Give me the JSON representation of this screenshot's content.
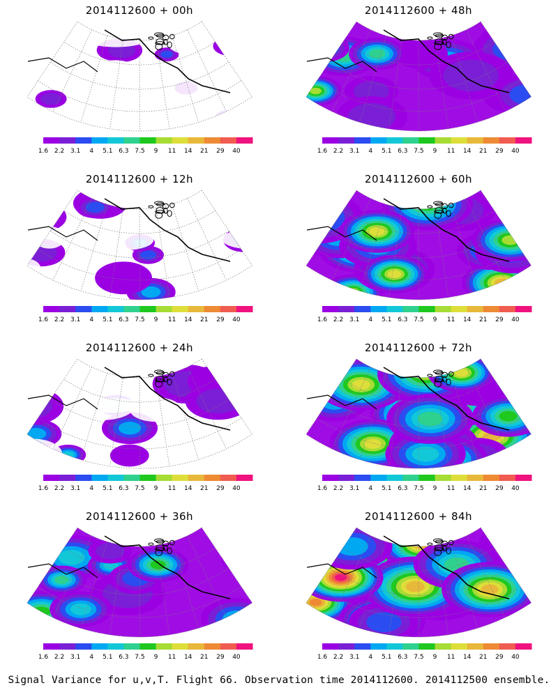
{
  "figure": {
    "footer": "Signal Variance for u,v,T. Flight 66. Observation time 2014112600. 2014112500 ensemble."
  },
  "panels": [
    {
      "id": "p00",
      "title": "2014112600 + 00h",
      "lead_hours": 0
    },
    {
      "id": "p48",
      "title": "2014112600 + 48h",
      "lead_hours": 48
    },
    {
      "id": "p12",
      "title": "2014112600 + 12h",
      "lead_hours": 12
    },
    {
      "id": "p60",
      "title": "2014112600 + 60h",
      "lead_hours": 60
    },
    {
      "id": "p24",
      "title": "2014112600 + 24h",
      "lead_hours": 24
    },
    {
      "id": "p72",
      "title": "2014112600 + 72h",
      "lead_hours": 72
    },
    {
      "id": "p36",
      "title": "2014112600 + 36h",
      "lead_hours": 36
    },
    {
      "id": "p84",
      "title": "2014112600 + 84h",
      "lead_hours": 84
    }
  ],
  "colorbar": {
    "labels": [
      "1.6",
      "2.2",
      "3.1",
      "4",
      "5.1",
      "6.3",
      "7.5",
      "9",
      "11",
      "14",
      "21",
      "29",
      "40"
    ],
    "colors": [
      "#9b00e3",
      "#7a1fd6",
      "#2b4cf0",
      "#00a8f2",
      "#12c8d8",
      "#2fd18e",
      "#1ec81e",
      "#a6dc34",
      "#dede3a",
      "#e8b83a",
      "#ee8a34",
      "#f05c50",
      "#f0127e"
    ]
  }
}
